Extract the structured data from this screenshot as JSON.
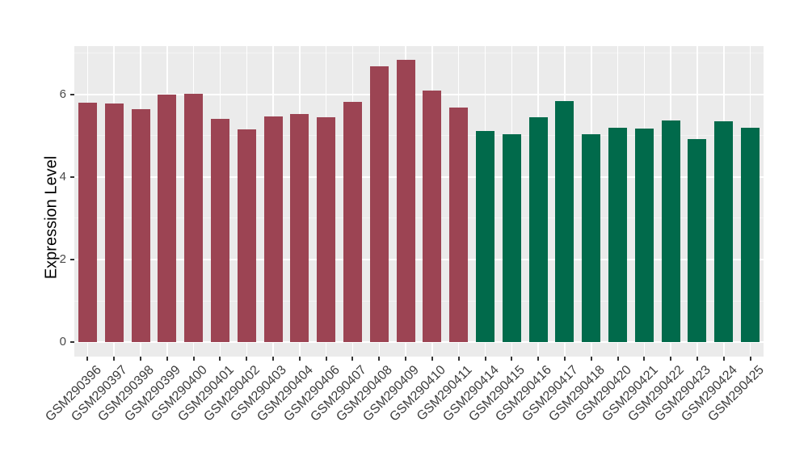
{
  "figure": {
    "background": "#FFFFFF",
    "panel_background": "#EBEBEB",
    "grid_major_color": "#FFFFFF",
    "grid_minor_color": "#F5F5F5",
    "tick_mark_color": "#333333",
    "axis_text_color": "#3d3d3d",
    "axis_title_color": "#000000"
  },
  "chart_data": {
    "type": "bar",
    "title": "",
    "xlabel": "",
    "ylabel": "Expression Level",
    "grid": "on",
    "legend_position": "none",
    "y_axis": {
      "ticks": [
        0,
        2,
        4,
        6
      ],
      "minor_ticks": [
        1,
        3,
        5,
        7
      ],
      "range": [
        -0.35,
        7.17
      ]
    },
    "bar_width_ratio": 0.7,
    "series": [
      {
        "name": "left-group-red",
        "color": "#9C4453",
        "categories": [
          "GSM290396",
          "GSM290397",
          "GSM290398",
          "GSM290399",
          "GSM290400",
          "GSM290401",
          "GSM290402",
          "GSM290403",
          "GSM290404",
          "GSM290406",
          "GSM290407",
          "GSM290408",
          "GSM290409",
          "GSM290410",
          "GSM290411"
        ],
        "values": [
          5.79,
          5.78,
          5.64,
          6.0,
          6.01,
          5.4,
          5.15,
          5.47,
          5.53,
          5.45,
          5.82,
          6.68,
          6.84,
          6.09,
          5.69
        ]
      },
      {
        "name": "right-group-green",
        "color": "#016A4B",
        "categories": [
          "GSM290414",
          "GSM290415",
          "GSM290416",
          "GSM290417",
          "GSM290418",
          "GSM290420",
          "GSM290421",
          "GSM290422",
          "GSM290423",
          "GSM290424",
          "GSM290425"
        ],
        "values": [
          5.11,
          5.03,
          5.44,
          5.84,
          5.03,
          5.2,
          5.18,
          5.36,
          4.91,
          5.35,
          5.19
        ]
      }
    ]
  }
}
